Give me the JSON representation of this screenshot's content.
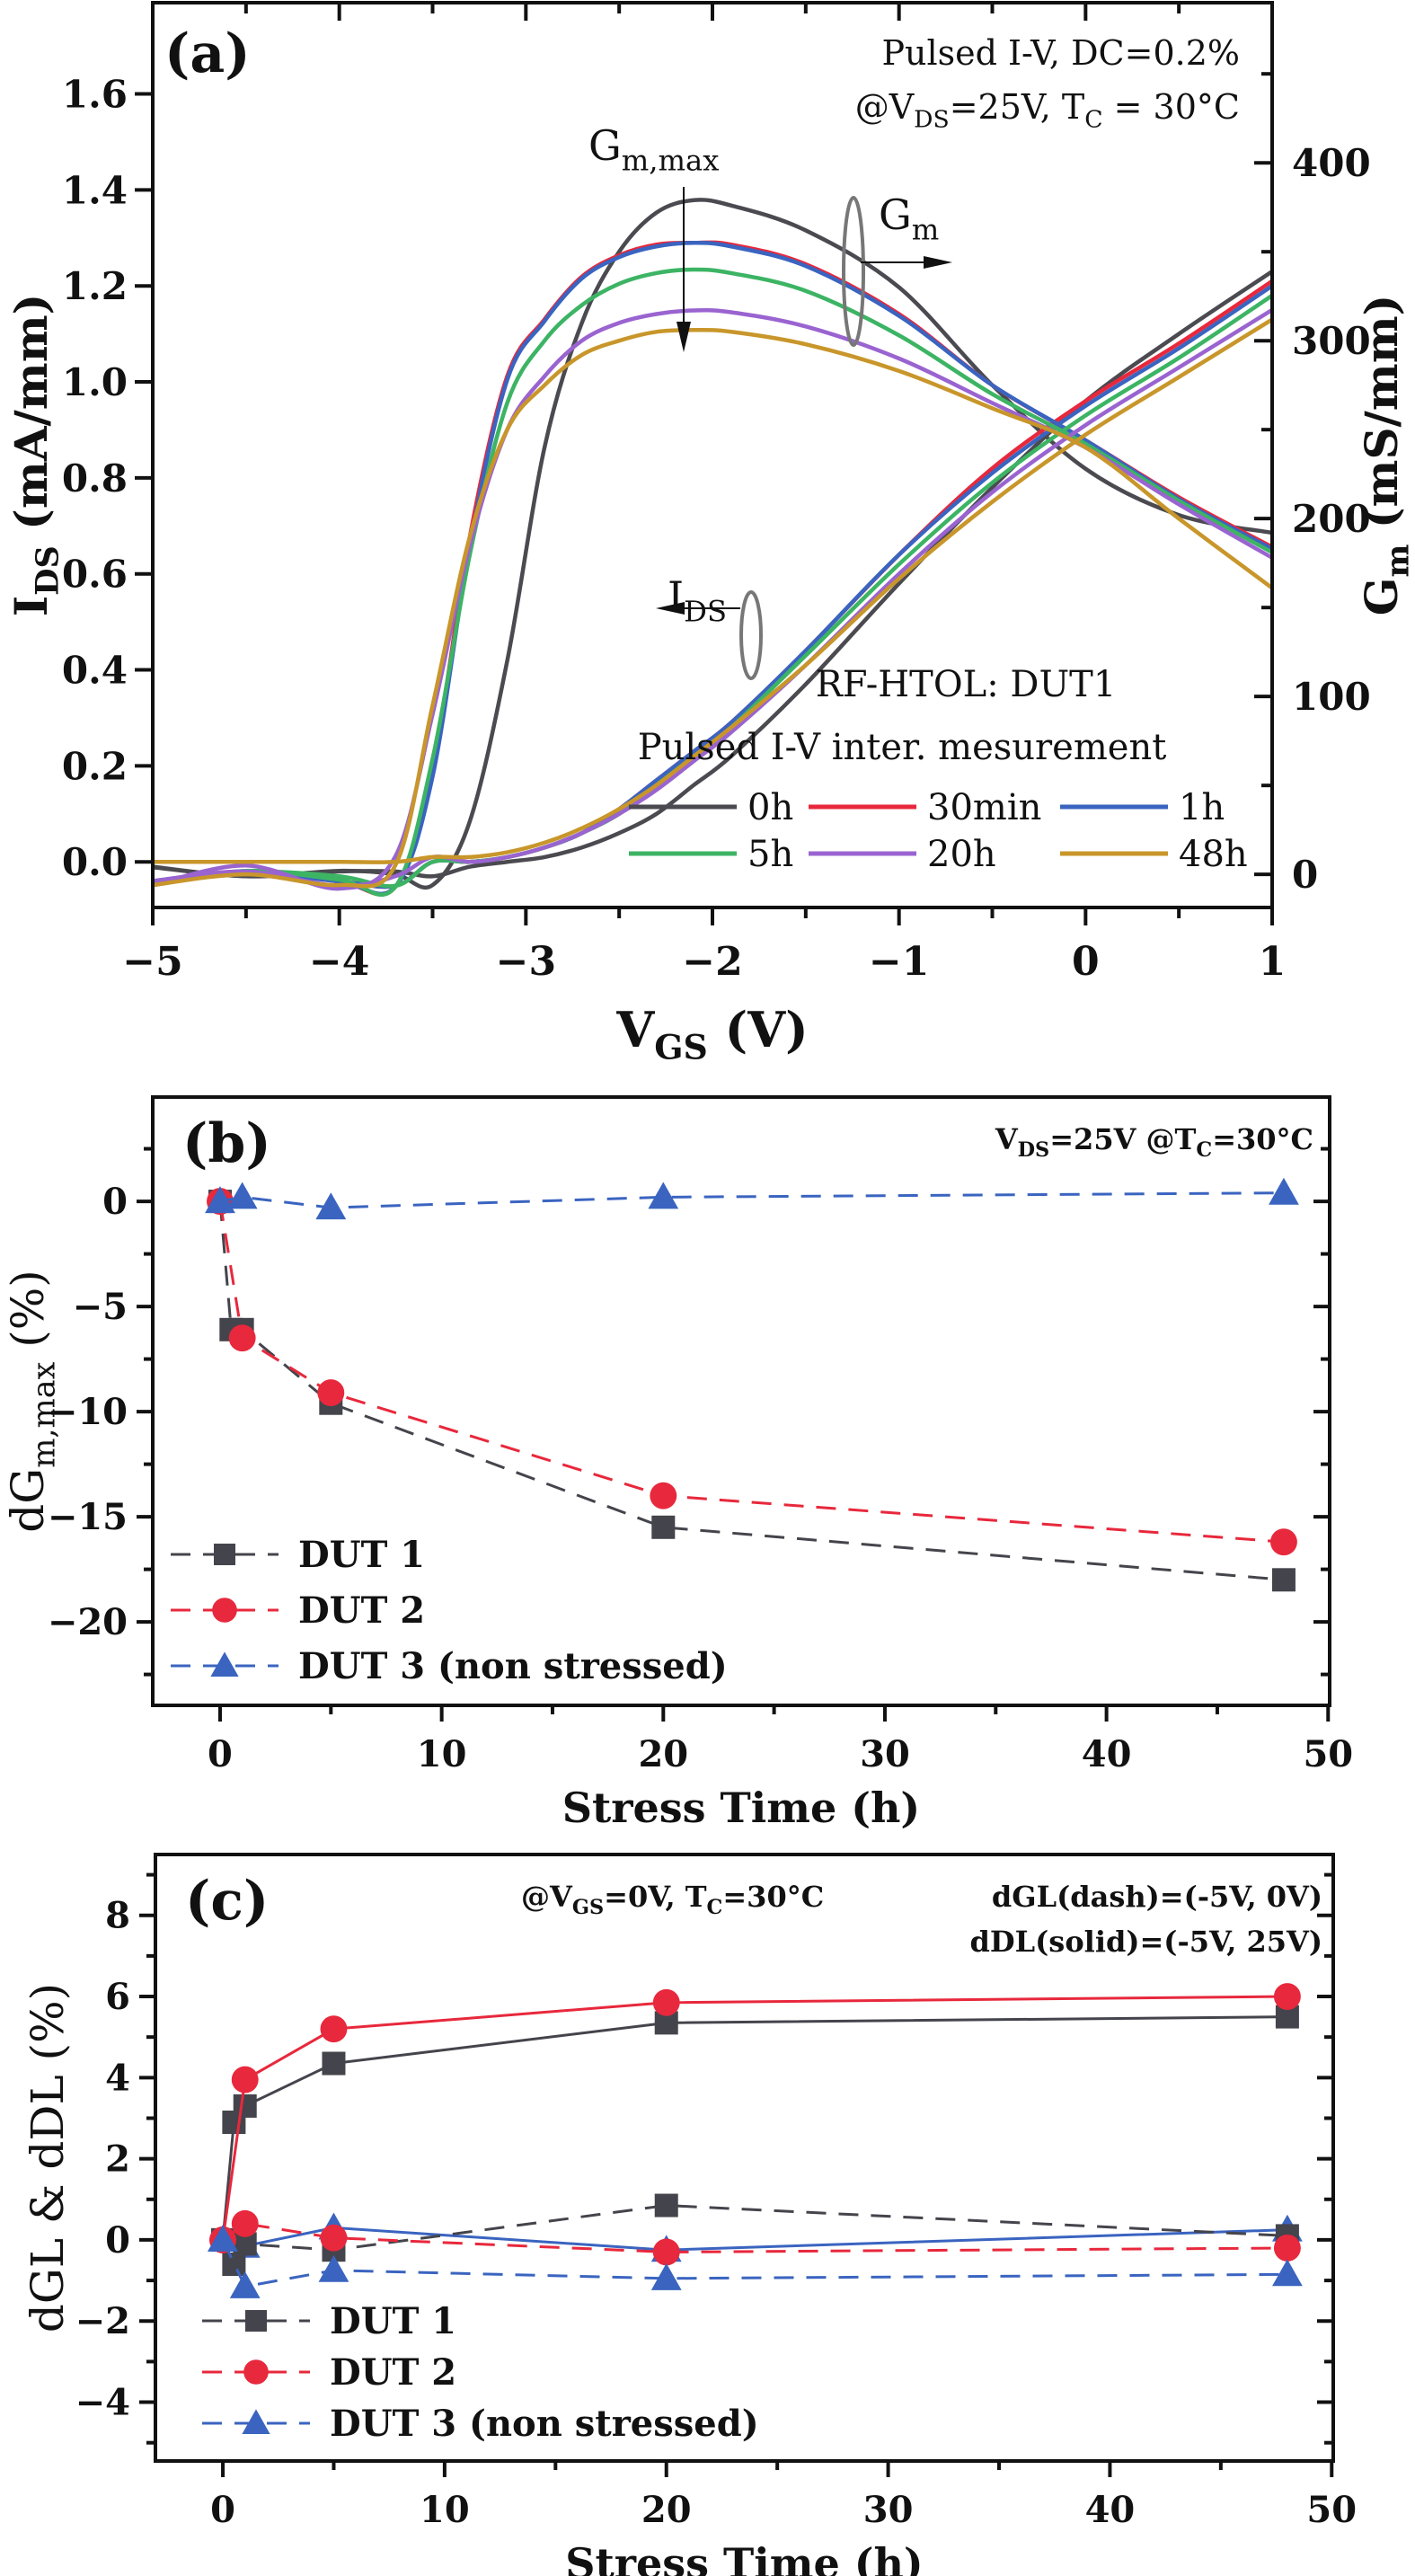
{
  "chart_data": [
    {
      "id": "a",
      "type": "line",
      "panel_label": "(a)",
      "xlabel": "V",
      "xlabel_sub": "GS",
      "xlabel_unit": " (V)",
      "ylabel": "I",
      "ylabel_sub": "DS",
      "ylabel_unit": " (mA/mm)",
      "y2label": "G",
      "y2label_sub": "m",
      "y2label_unit": " (mS/mm)",
      "xlim": [
        -5,
        1
      ],
      "ylim": [
        -0.095,
        1.79
      ],
      "y2lim": [
        -18.6,
        490
      ],
      "xticks": [
        -5,
        -4,
        -3,
        -2,
        -1,
        0,
        1
      ],
      "xtick_labels": [
        "−5",
        "−4",
        "−3",
        "−2",
        "−1",
        "0",
        "1"
      ],
      "yticks": [
        0.0,
        0.2,
        0.4,
        0.6,
        0.8,
        1.0,
        1.2,
        1.4,
        1.6
      ],
      "ytick_labels": [
        "0.0",
        "0.2",
        "0.4",
        "0.6",
        "0.8",
        "1.0",
        "1.2",
        "1.4",
        "1.6"
      ],
      "y2ticks": [
        0,
        100,
        200,
        300,
        400
      ],
      "y2tick_labels": [
        "0",
        "100",
        "200",
        "300",
        "400"
      ],
      "annotations": {
        "condition_line1": "Pulsed I-V, DC=0.2%",
        "condition_line2_pre": "@V",
        "condition_line2_sub": "DS",
        "condition_line2_post": "=25V, T",
        "condition_line2_sub2": "C",
        "condition_line2_end": " = 30°C",
        "gmmax_label": "G",
        "gmmax_sub": "m,max",
        "gm_label": "G",
        "gm_sub": "m",
        "ids_label": "I",
        "ids_sub": "DS",
        "test_label": "RF-HTOL: DUT1",
        "legend_title": "Pulsed I-V inter. mesurement"
      },
      "legend_position": "bottom-right",
      "x": [
        -5,
        -4.5,
        -4,
        -3.7,
        -3.5,
        -3.3,
        -3.1,
        -2.9,
        -2.7,
        -2.5,
        -2.3,
        -2.1,
        -1.9,
        -1.5,
        -1.0,
        -0.5,
        0,
        0.5,
        1.0
      ],
      "series": [
        {
          "name": "0h",
          "color": "#4a4a50",
          "ids": [
            -0.01,
            -0.03,
            -0.02,
            -0.02,
            -0.03,
            -0.01,
            0.0,
            0.01,
            0.03,
            0.06,
            0.1,
            0.16,
            0.22,
            0.37,
            0.58,
            0.78,
            0.96,
            1.1,
            1.23
          ],
          "gm": [
            4,
            -1,
            2,
            0,
            -6,
            30,
            120,
            240,
            310,
            350,
            372,
            379,
            376,
            362,
            330,
            275,
            228,
            202,
            192
          ]
        },
        {
          "name": "30min",
          "color": "#e8283c",
          "ids": [
            -0.04,
            -0.02,
            -0.04,
            -0.05,
            0.0,
            0.0,
            0.01,
            0.03,
            0.06,
            0.11,
            0.17,
            0.23,
            0.29,
            0.44,
            0.64,
            0.82,
            0.96,
            1.08,
            1.21
          ],
          "gm": [
            -6,
            1,
            -4,
            -7,
            60,
            190,
            280,
            312,
            336,
            348,
            354,
            355,
            354,
            343,
            315,
            275,
            244,
            212,
            184
          ]
        },
        {
          "name": "1h",
          "color": "#3a64c0",
          "ids": [
            -0.04,
            -0.02,
            -0.04,
            -0.05,
            0.0,
            0.0,
            0.01,
            0.03,
            0.06,
            0.11,
            0.17,
            0.23,
            0.29,
            0.44,
            0.64,
            0.81,
            0.95,
            1.07,
            1.2
          ],
          "gm": [
            -6,
            1,
            -4,
            -7,
            55,
            185,
            278,
            311,
            335,
            347,
            353,
            355,
            353,
            342,
            314,
            275,
            244,
            211,
            183
          ]
        },
        {
          "name": "5h",
          "color": "#3cb464",
          "ids": [
            -0.04,
            -0.02,
            -0.03,
            -0.05,
            0.0,
            0.0,
            0.01,
            0.03,
            0.06,
            0.1,
            0.16,
            0.22,
            0.28,
            0.43,
            0.62,
            0.79,
            0.93,
            1.05,
            1.18
          ],
          "gm": [
            -6,
            2,
            -3,
            -7,
            65,
            180,
            265,
            300,
            320,
            332,
            338,
            340,
            338,
            328,
            303,
            270,
            242,
            210,
            181
          ]
        },
        {
          "name": "20h",
          "color": "#9a64d0",
          "ids": [
            -0.04,
            -0.02,
            -0.05,
            -0.03,
            0.01,
            0.0,
            0.01,
            0.03,
            0.06,
            0.1,
            0.15,
            0.21,
            0.27,
            0.41,
            0.6,
            0.77,
            0.91,
            1.03,
            1.15
          ],
          "gm": [
            -6,
            5,
            -8,
            10,
            90,
            185,
            250,
            280,
            300,
            310,
            315,
            317,
            316,
            308,
            290,
            265,
            240,
            208,
            178
          ]
        },
        {
          "name": "48h",
          "color": "#c8962a",
          "ids": [
            0.0,
            0.0,
            0.0,
            0.0,
            0.01,
            0.01,
            0.02,
            0.04,
            0.07,
            0.11,
            0.16,
            0.22,
            0.28,
            0.41,
            0.59,
            0.75,
            0.89,
            1.01,
            1.13
          ],
          "gm": [
            -6,
            0,
            -6,
            5,
            95,
            190,
            250,
            275,
            292,
            300,
            305,
            306,
            305,
            298,
            283,
            262,
            240,
            200,
            161
          ]
        }
      ]
    },
    {
      "id": "b",
      "type": "line",
      "panel_label": "(b)",
      "xlabel": "Stress Time (h)",
      "ylabel": "dG",
      "ylabel_sub": "m,max",
      "ylabel_unit": " (%)",
      "xlim": [
        -3.04,
        50.07
      ],
      "ylim": [
        -23.97,
        4.96
      ],
      "xticks": [
        0,
        10,
        20,
        30,
        40,
        50
      ],
      "xtick_labels": [
        "0",
        "10",
        "20",
        "30",
        "40",
        "50"
      ],
      "xminor": [
        5,
        15,
        25,
        35,
        45
      ],
      "yticks": [
        0,
        -5,
        -10,
        -15,
        -20
      ],
      "ytick_labels": [
        "0",
        "−5",
        "−10",
        "−15",
        "−20"
      ],
      "yminor": [
        2.5,
        -2.5,
        -7.5,
        -12.5,
        -17.5,
        -22.5
      ],
      "annotation_pre": "V",
      "annotation_sub": "DS",
      "annotation_mid": "=25V @T",
      "annotation_sub2": "C",
      "annotation_end": "=30°C",
      "legend_position": "bottom-left",
      "series": [
        {
          "name": "DUT 1",
          "color": "#44444c",
          "marker": "square",
          "dash": true,
          "x": [
            0,
            0.5,
            1,
            5,
            20,
            48
          ],
          "y": [
            0,
            -6.1,
            -6.1,
            -9.6,
            -15.5,
            -18.0
          ]
        },
        {
          "name": "DUT 2",
          "color": "#e8283c",
          "marker": "circle",
          "dash": true,
          "x": [
            0,
            1,
            5,
            20,
            48
          ],
          "y": [
            0,
            -6.5,
            -9.1,
            -14.0,
            -16.2
          ]
        },
        {
          "name": "DUT 3 (non stressed)",
          "color": "#3a64c0",
          "marker": "triangle",
          "dash": true,
          "x": [
            0,
            1,
            5,
            20,
            48
          ],
          "y": [
            0,
            0.2,
            -0.3,
            0.2,
            0.4
          ]
        }
      ]
    },
    {
      "id": "c",
      "type": "line",
      "panel_label": "(c)",
      "xlabel": "Stress Time (h)",
      "ylabel": "dGL & dDL (%)",
      "xlim": [
        -3.04,
        50.07
      ],
      "ylim": [
        -5.45,
        9.5
      ],
      "xticks": [
        0,
        10,
        20,
        30,
        40,
        50
      ],
      "xtick_labels": [
        "0",
        "10",
        "20",
        "30",
        "40",
        "50"
      ],
      "xminor": [
        5,
        15,
        25,
        35,
        45
      ],
      "yticks": [
        8,
        6,
        4,
        2,
        0,
        -2,
        -4
      ],
      "ytick_labels": [
        "8",
        "6",
        "4",
        "2",
        "0",
        "−2",
        "−4"
      ],
      "yminor": [
        9,
        7,
        5,
        3,
        1,
        -1,
        -3,
        -5
      ],
      "annotation_pre": "@V",
      "annotation_sub": "GS",
      "annotation_mid": "=0V, T",
      "annotation_sub2": "C",
      "annotation_end": "=30°C",
      "annotation_right1": "dGL(dash)=(-5V, 0V)",
      "annotation_right2": "dDL(solid)=(-5V, 25V)",
      "legend_position": "bottom-left",
      "legend": [
        {
          "name": "DUT 1",
          "color": "#44444c",
          "marker": "square"
        },
        {
          "name": "DUT 2",
          "color": "#e8283c",
          "marker": "circle"
        },
        {
          "name": "DUT 3 (non stressed)",
          "color": "#3a64c0",
          "marker": "triangle"
        }
      ],
      "series": [
        {
          "name": "DUT 1 dDL",
          "color": "#44444c",
          "marker": "square",
          "dash": false,
          "x": [
            0,
            0.5,
            1,
            5,
            20,
            48
          ],
          "y": [
            0,
            2.9,
            3.3,
            4.35,
            5.35,
            5.5
          ]
        },
        {
          "name": "DUT 2 dDL",
          "color": "#e8283c",
          "marker": "circle",
          "dash": false,
          "x": [
            0,
            1,
            5,
            20,
            48
          ],
          "y": [
            0,
            3.95,
            5.2,
            5.85,
            6.0
          ]
        },
        {
          "name": "DUT 3 dDL",
          "color": "#3a64c0",
          "marker": "triangle",
          "dash": false,
          "x": [
            0,
            1,
            5,
            20,
            48
          ],
          "y": [
            0,
            -0.15,
            0.3,
            -0.25,
            0.25
          ]
        },
        {
          "name": "DUT 1 dGL",
          "color": "#44444c",
          "marker": "square",
          "dash": true,
          "x": [
            0,
            0.5,
            1,
            5,
            20,
            48
          ],
          "y": [
            0,
            -0.6,
            -0.1,
            -0.25,
            0.85,
            0.1
          ]
        },
        {
          "name": "DUT 2 dGL",
          "color": "#e8283c",
          "marker": "circle",
          "dash": true,
          "x": [
            0,
            1,
            5,
            20,
            48
          ],
          "y": [
            0,
            0.4,
            0.05,
            -0.3,
            -0.2
          ]
        },
        {
          "name": "DUT 3 dGL",
          "color": "#3a64c0",
          "marker": "triangle",
          "dash": true,
          "x": [
            0,
            1,
            5,
            20,
            48
          ],
          "y": [
            0,
            -1.15,
            -0.75,
            -0.95,
            -0.85
          ]
        }
      ]
    }
  ]
}
